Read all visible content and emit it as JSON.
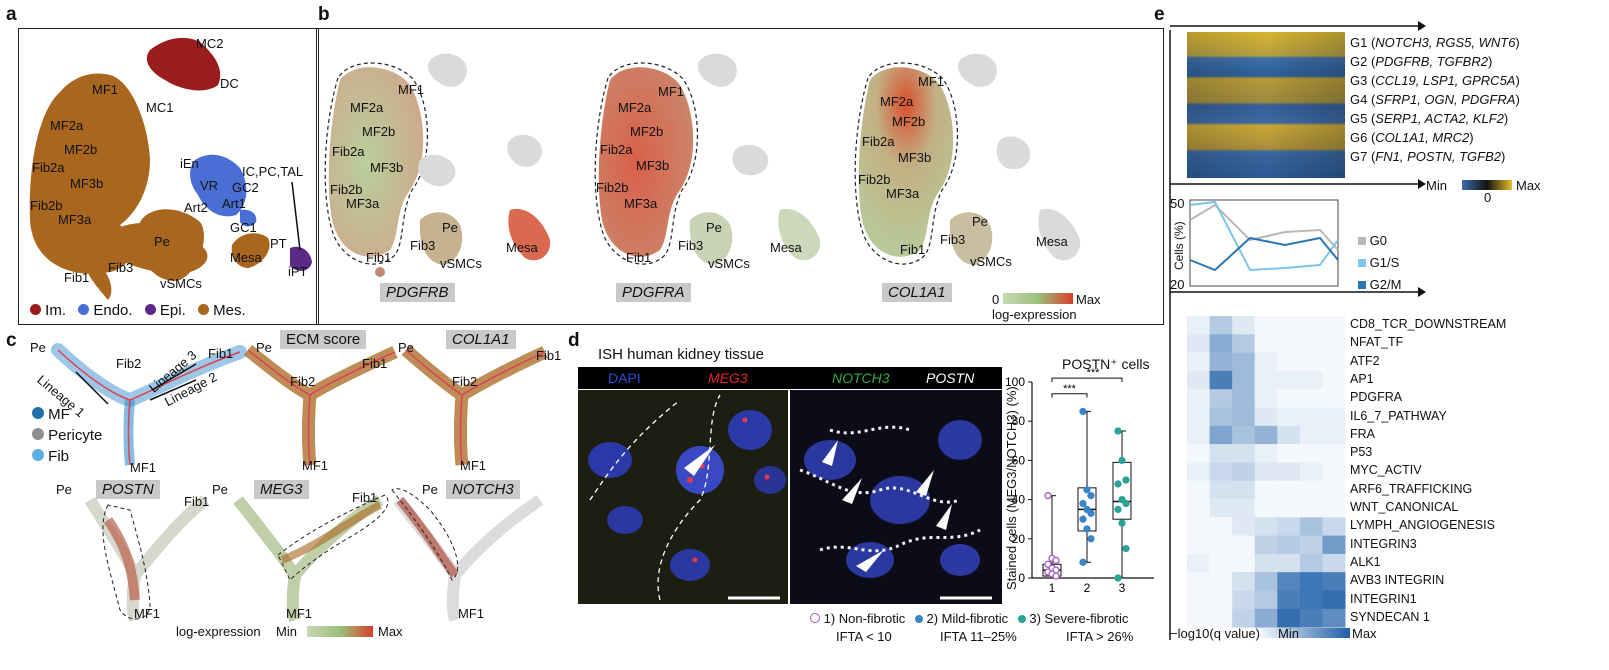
{
  "panel_labels": {
    "a": "a",
    "b": "b",
    "c": "c",
    "d": "d",
    "e": "e"
  },
  "colors": {
    "immune": "#9b1c1c",
    "endo": "#4a6fd4",
    "epi": "#5b2a86",
    "mes": "#a8661e",
    "cell_lo": "#c6d8b4",
    "cell_hi": "#d8402c",
    "bg_cell": "#dcdcdc",
    "heat_blue": "#1f5fa8",
    "heat_yellow": "#e5c12a"
  },
  "a": {
    "clusters": [
      "MC2",
      "DC",
      "MC1",
      "MF1",
      "MF2a",
      "MF2b",
      "Fib2a",
      "MF3b",
      "Fib2b",
      "MF3a",
      "iEn",
      "VR",
      "GC2",
      "IC,PC,TAL",
      "Art2",
      "Art1",
      "GC1",
      "Pe",
      "Mesa",
      "PT",
      "iPT",
      "Fib3",
      "vSMCs",
      "Fib1"
    ],
    "legend": [
      {
        "label": "Im.",
        "color": "#9b1c1c"
      },
      {
        "label": "Endo.",
        "color": "#4a6fd4"
      },
      {
        "label": "Epi.",
        "color": "#5b2a86"
      },
      {
        "label": "Mes.",
        "color": "#a8661e"
      }
    ]
  },
  "b": {
    "genes": [
      "PDGFRB",
      "PDGFRA",
      "COL1A1"
    ],
    "labels": [
      "MF1",
      "MF2a",
      "MF2b",
      "Fib2a",
      "MF3b",
      "Fib2b",
      "MF3a",
      "Pe",
      "Fib3",
      "vSMCs",
      "Fib1",
      "Mesa"
    ],
    "scale_min": "0",
    "scale_max": "Max",
    "scale_label": "log-expression"
  },
  "c": {
    "lineages": [
      "Lineage 1",
      "Lineage 2",
      "Lineage 3"
    ],
    "tips": [
      "Pe",
      "Fib1",
      "Fib2",
      "MF1"
    ],
    "legend": [
      {
        "label": "MF",
        "color": "#1f6fa8"
      },
      {
        "label": "Pericyte",
        "color": "#8f8f8f"
      },
      {
        "label": "Fib",
        "color": "#5bb0e0"
      }
    ],
    "titles": [
      "ECM score",
      "COL1A1",
      "POSTN",
      "MEG3",
      "NOTCH3"
    ],
    "scale_label": "log-expression",
    "scale_min": "Min",
    "scale_max": "Max"
  },
  "d": {
    "title": "ISH human kidney tissue",
    "channels": [
      {
        "label": "DAPI",
        "color": "#2d4bd8"
      },
      {
        "label": "MEG3",
        "color": "#e0242c"
      },
      {
        "label": "NOTCH3",
        "color": "#2eaa3a"
      },
      {
        "label": "POSTN",
        "color": "#ffffff"
      }
    ],
    "boxplot_title": "POSTN⁺ cells",
    "ylabel": "Stained cells (MEG3/NOTCH3) (%)",
    "yticks": [
      "0",
      "20",
      "40",
      "60",
      "80",
      "100"
    ],
    "xticks": [
      "1",
      "2",
      "3"
    ],
    "significance": [
      "***",
      "***"
    ],
    "groups": [
      {
        "name": "1) Non-fibrotic",
        "sub": "IFTA < 10",
        "color": "#a05cc0"
      },
      {
        "name": "2) Mild-fibrotic",
        "sub": "IFTA 11–25%",
        "color": "#3a84c8"
      },
      {
        "name": "3) Severe-fibrotic",
        "sub": "IFTA > 26%",
        "color": "#2aa296"
      }
    ]
  },
  "chart_data": {
    "type": "scatter",
    "title": "POSTN⁺ cells",
    "ylabel": "Stained cells (MEG3/NOTCH3) (%)",
    "ylim": [
      0,
      100
    ],
    "categories": [
      "1",
      "2",
      "3"
    ],
    "series": [
      {
        "name": "1) Non-fibrotic",
        "values": [
          42,
          10,
          9,
          7,
          5,
          4,
          3,
          2,
          1
        ]
      },
      {
        "name": "2) Mild-fibrotic",
        "values": [
          85,
          45,
          42,
          38,
          35,
          33,
          30,
          25,
          20,
          8
        ]
      },
      {
        "name": "3) Severe-fibrotic",
        "values": [
          75,
          60,
          50,
          48,
          40,
          38,
          35,
          28,
          15,
          0
        ]
      }
    ],
    "box": [
      {
        "q1": 1,
        "median": 4,
        "q3": 7,
        "min": 0,
        "max": 42
      },
      {
        "q1": 24,
        "median": 35,
        "q3": 46,
        "min": 8,
        "max": 85
      },
      {
        "q1": 30,
        "median": 39,
        "q3": 59,
        "min": 0,
        "max": 75
      }
    ]
  },
  "e": {
    "gene_groups": [
      {
        "g": "G1",
        "genes": "NOTCH3, RGS5, WNT6"
      },
      {
        "g": "G2",
        "genes": "PDGFRB, TGFBR2"
      },
      {
        "g": "G3",
        "genes": "CCL19, LSP1, GPRC5A"
      },
      {
        "g": "G4",
        "genes": "SFRP1, OGN, PDGFRA"
      },
      {
        "g": "G5",
        "genes": "SERP1, ACTA2, KLF2"
      },
      {
        "g": "G6",
        "genes": "COL1A1, MRC2"
      },
      {
        "g": "G7",
        "genes": "FN1, POSTN, TGFB2"
      }
    ],
    "heat_min": "Min",
    "heat_mid": "0",
    "heat_max": "Max",
    "cc_ylabel": "Cells (%)",
    "cc_ymax": "50",
    "cc_ymin": "20",
    "cc_legend": [
      {
        "label": "G0",
        "color": "#b8b8b8"
      },
      {
        "label": "G1/S",
        "color": "#7ec3ea"
      },
      {
        "label": "G2/M",
        "color": "#2b77b5"
      }
    ],
    "pathways": [
      "CD8_TCR_DOWNSTREAM",
      "NFAT_TF",
      "ATF2",
      "AP1",
      "PDGFRA",
      "IL6_7_PATHWAY",
      "FRA",
      "P53",
      "MYC_ACTIV",
      "ARF6_TRAFFICKING",
      "WNT_CANONICAL",
      "LYMPH_ANGIOGENESIS",
      "INTEGRIN3",
      "ALK1",
      "AVB3 INTEGRIN",
      "INTEGRIN1",
      "SYNDECAN 1"
    ],
    "qlabel": "−log10(q value)",
    "q_min": "Min",
    "q_max": "Max",
    "heat_values": [
      [
        0.05,
        0.3,
        0.1,
        0,
        0,
        0,
        0
      ],
      [
        0.1,
        0.5,
        0.3,
        0,
        0,
        0,
        0
      ],
      [
        0.05,
        0.45,
        0.4,
        0.05,
        0,
        0,
        0
      ],
      [
        0.1,
        0.8,
        0.4,
        0.05,
        0.05,
        0.05,
        0
      ],
      [
        0.05,
        0.3,
        0.4,
        0.05,
        0,
        0,
        0
      ],
      [
        0.05,
        0.35,
        0.4,
        0.1,
        0.05,
        0.05,
        0.05
      ],
      [
        0.05,
        0.55,
        0.35,
        0.45,
        0.15,
        0.05,
        0.05
      ],
      [
        0,
        0.15,
        0.15,
        0.05,
        0,
        0,
        0
      ],
      [
        0.05,
        0.2,
        0.25,
        0.1,
        0.1,
        0.05,
        0
      ],
      [
        0,
        0.15,
        0.15,
        0,
        0,
        0,
        0
      ],
      [
        0,
        0.1,
        0.1,
        0,
        0,
        0,
        0
      ],
      [
        0,
        0,
        0.1,
        0.15,
        0.2,
        0.35,
        0.2
      ],
      [
        0,
        0,
        0,
        0.25,
        0.3,
        0.25,
        0.6
      ],
      [
        0.05,
        0,
        0,
        0.15,
        0.15,
        0.3,
        0.2
      ],
      [
        0,
        0,
        0.15,
        0.35,
        0.75,
        0.85,
        0.8
      ],
      [
        0,
        0,
        0.2,
        0.3,
        0.8,
        0.85,
        0.9
      ],
      [
        0,
        0,
        0.25,
        0.5,
        0.9,
        0.8,
        0.7
      ]
    ]
  }
}
